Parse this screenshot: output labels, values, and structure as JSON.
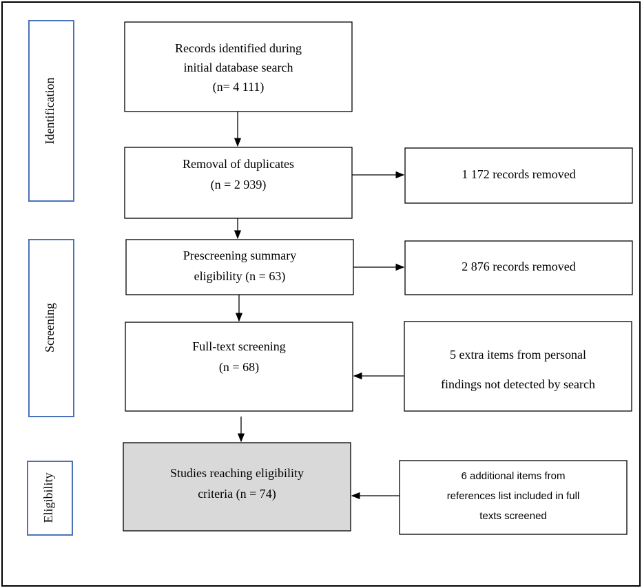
{
  "stages": [
    {
      "label": "Identification"
    },
    {
      "label": "Screening"
    },
    {
      "label": "Eligibility"
    }
  ],
  "boxes": [
    {
      "lines": [
        "Records identified during",
        "initial database search",
        "(n= 4 111)"
      ]
    },
    {
      "lines": [
        "Removal of duplicates",
        "(n = 2 939)"
      ]
    },
    {
      "lines": [
        "Prescreening summary",
        "eligibility (n = 63)"
      ]
    },
    {
      "lines": [
        "Full-text screening",
        "(n = 68)"
      ]
    },
    {
      "lines": [
        "Studies reaching eligibility",
        "criteria (n = 74)"
      ]
    }
  ],
  "side_boxes": [
    {
      "lines": [
        "1 172 records removed"
      ]
    },
    {
      "lines": [
        "2 876 records removed"
      ]
    },
    {
      "lines": [
        "5 extra items from personal",
        "findings not detected by search"
      ]
    },
    {
      "lines": [
        "6 additional items from",
        "references list included in full",
        "texts screened"
      ]
    }
  ]
}
